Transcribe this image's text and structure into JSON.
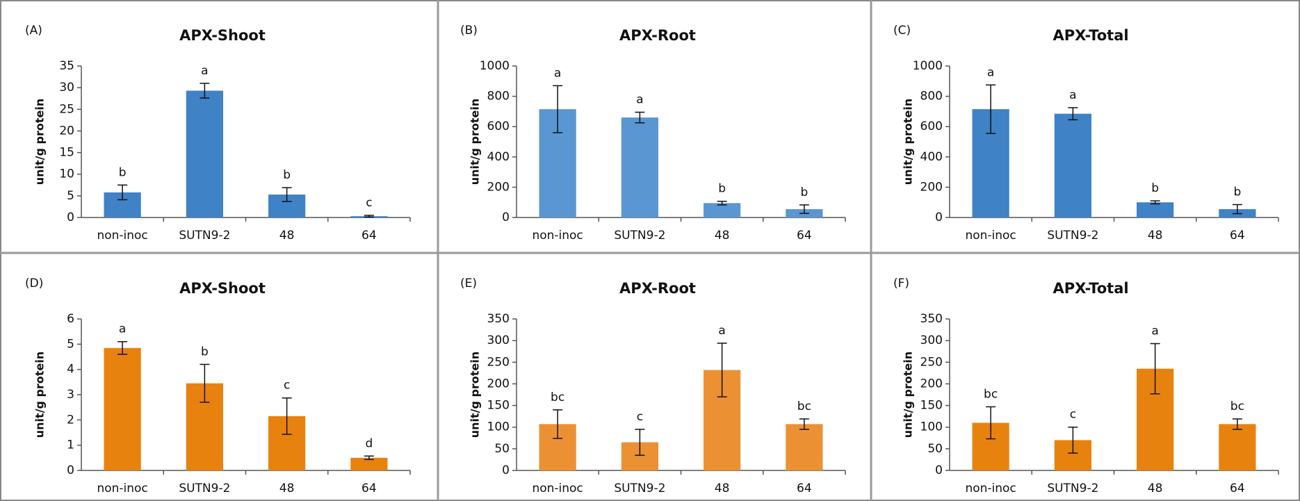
{
  "chart_data": [
    {
      "type": "bar",
      "panel": "(A)",
      "title": "APX-Shoot",
      "ylabel": "unit/g protein",
      "color": "#3f82c6",
      "categories": [
        "non-inoc",
        "SUTN9-2",
        "48",
        "64"
      ],
      "values": [
        5.8,
        29.3,
        5.3,
        0.3
      ],
      "errors": [
        1.7,
        1.7,
        1.6,
        0.2
      ],
      "letters": [
        "b",
        "a",
        "b",
        "c"
      ],
      "ylim": [
        0,
        35
      ],
      "yticks": [
        0,
        5,
        10,
        15,
        20,
        25,
        30,
        35
      ]
    },
    {
      "type": "bar",
      "panel": "(B)",
      "title": "APX-Root",
      "ylabel": "unit/g protein",
      "color": "#5a97d2",
      "categories": [
        "non-inoc",
        "SUTN9-2",
        "48",
        "64"
      ],
      "values": [
        715,
        660,
        95,
        55
      ],
      "errors": [
        155,
        35,
        12,
        28
      ],
      "letters": [
        "a",
        "a",
        "b",
        "b"
      ],
      "ylim": [
        0,
        1000
      ],
      "yticks": [
        0,
        200,
        400,
        600,
        800,
        1000
      ]
    },
    {
      "type": "bar",
      "panel": "(C)",
      "title": "APX-Total",
      "ylabel": "unit/g protein",
      "color": "#3f82c6",
      "categories": [
        "non-inoc",
        "SUTN9-2",
        "48",
        "64"
      ],
      "values": [
        715,
        685,
        100,
        55
      ],
      "errors": [
        160,
        40,
        10,
        30
      ],
      "letters": [
        "a",
        "a",
        "b",
        "b"
      ],
      "ylim": [
        0,
        1000
      ],
      "yticks": [
        0,
        200,
        400,
        600,
        800,
        1000
      ]
    },
    {
      "type": "bar",
      "panel": "(D)",
      "title": "APX-Shoot",
      "ylabel": "unit/g protein",
      "color": "#e8820e",
      "categories": [
        "non-inoc",
        "SUTN9-2",
        "48",
        "64"
      ],
      "values": [
        4.85,
        3.45,
        2.15,
        0.5
      ],
      "errors": [
        0.25,
        0.75,
        0.72,
        0.07
      ],
      "letters": [
        "a",
        "b",
        "c",
        "d"
      ],
      "ylim": [
        0,
        6
      ],
      "yticks": [
        0,
        1,
        2,
        3,
        4,
        5,
        6
      ]
    },
    {
      "type": "bar",
      "panel": "(E)",
      "title": "APX-Root",
      "ylabel": "unit/g protein",
      "color": "#ec9133",
      "categories": [
        "non-inoc",
        "SUTN9-2",
        "48",
        "64"
      ],
      "values": [
        107,
        65,
        232,
        107
      ],
      "errors": [
        33,
        30,
        62,
        12
      ],
      "letters": [
        "bc",
        "c",
        "a",
        "bc"
      ],
      "ylim": [
        0,
        350
      ],
      "yticks": [
        0,
        50,
        100,
        150,
        200,
        250,
        300,
        350
      ]
    },
    {
      "type": "bar",
      "panel": "(F)",
      "title": "APX-Total",
      "ylabel": "unit/g protein",
      "color": "#e8820e",
      "categories": [
        "non-inoc",
        "SUTN9-2",
        "48",
        "64"
      ],
      "values": [
        110,
        70,
        235,
        107
      ],
      "errors": [
        37,
        30,
        58,
        12
      ],
      "letters": [
        "bc",
        "c",
        "a",
        "bc"
      ],
      "ylim": [
        0,
        350
      ],
      "yticks": [
        0,
        50,
        100,
        150,
        200,
        250,
        300,
        350
      ]
    }
  ]
}
